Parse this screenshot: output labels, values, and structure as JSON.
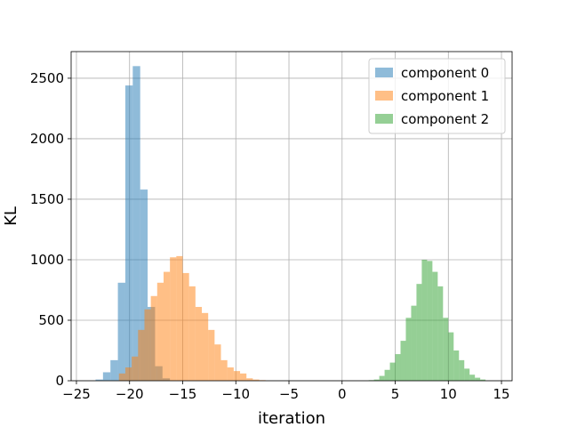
{
  "chart_data": {
    "type": "histogram",
    "xlabel": "iteration",
    "ylabel": "KL",
    "xlim": [
      -25.5,
      16
    ],
    "ylim": [
      0,
      2720
    ],
    "xticks": [
      -25,
      -20,
      -15,
      -10,
      -5,
      0,
      5,
      10,
      15
    ],
    "yticks": [
      0,
      500,
      1000,
      1500,
      2000,
      2500
    ],
    "grid": true,
    "legend_position": "top-right",
    "series": [
      {
        "name": "component 0",
        "color": "#1f77b4",
        "opacity": 0.5,
        "bins": [
          [
            -23.2,
            -22.5,
            10
          ],
          [
            -22.5,
            -21.8,
            70
          ],
          [
            -21.8,
            -21.1,
            170
          ],
          [
            -21.1,
            -20.4,
            810
          ],
          [
            -20.4,
            -19.7,
            2440
          ],
          [
            -19.7,
            -19.0,
            2600
          ],
          [
            -19.0,
            -18.3,
            1580
          ],
          [
            -18.3,
            -17.6,
            610
          ],
          [
            -17.6,
            -16.9,
            120
          ],
          [
            -16.9,
            -16.2,
            20
          ]
        ]
      },
      {
        "name": "component 1",
        "color": "#ff7f0e",
        "opacity": 0.5,
        "bins": [
          [
            -21.0,
            -20.4,
            60
          ],
          [
            -20.4,
            -19.8,
            110
          ],
          [
            -19.8,
            -19.2,
            200
          ],
          [
            -19.2,
            -18.6,
            420
          ],
          [
            -18.6,
            -18.0,
            590
          ],
          [
            -18.0,
            -17.4,
            700
          ],
          [
            -17.4,
            -16.8,
            810
          ],
          [
            -16.8,
            -16.2,
            900
          ],
          [
            -16.2,
            -15.6,
            1020
          ],
          [
            -15.6,
            -15.0,
            1030
          ],
          [
            -15.0,
            -14.4,
            890
          ],
          [
            -14.4,
            -13.8,
            780
          ],
          [
            -13.8,
            -13.2,
            610
          ],
          [
            -13.2,
            -12.6,
            560
          ],
          [
            -12.6,
            -12.0,
            420
          ],
          [
            -12.0,
            -11.4,
            300
          ],
          [
            -11.4,
            -10.8,
            170
          ],
          [
            -10.8,
            -10.2,
            110
          ],
          [
            -10.2,
            -9.6,
            80
          ],
          [
            -9.6,
            -9.0,
            60
          ],
          [
            -9.0,
            -8.4,
            20
          ],
          [
            -8.4,
            -7.8,
            10
          ],
          [
            -7.8,
            -7.2,
            5
          ]
        ]
      },
      {
        "name": "component 2",
        "color": "#2ca02c",
        "opacity": 0.5,
        "bins": [
          [
            2.5,
            3.0,
            5
          ],
          [
            3.0,
            3.5,
            10
          ],
          [
            3.5,
            4.0,
            40
          ],
          [
            4.0,
            4.5,
            90
          ],
          [
            4.5,
            5.0,
            150
          ],
          [
            5.0,
            5.5,
            220
          ],
          [
            5.5,
            6.0,
            330
          ],
          [
            6.0,
            6.5,
            520
          ],
          [
            6.5,
            7.0,
            620
          ],
          [
            7.0,
            7.5,
            800
          ],
          [
            7.5,
            8.0,
            1000
          ],
          [
            8.0,
            8.5,
            990
          ],
          [
            8.5,
            9.0,
            900
          ],
          [
            9.0,
            9.5,
            780
          ],
          [
            9.5,
            10.0,
            520
          ],
          [
            10.0,
            10.5,
            400
          ],
          [
            10.5,
            11.0,
            250
          ],
          [
            11.0,
            11.5,
            170
          ],
          [
            11.5,
            12.0,
            100
          ],
          [
            12.0,
            12.5,
            50
          ],
          [
            12.5,
            13.0,
            25
          ],
          [
            13.0,
            13.5,
            10
          ]
        ]
      }
    ]
  }
}
